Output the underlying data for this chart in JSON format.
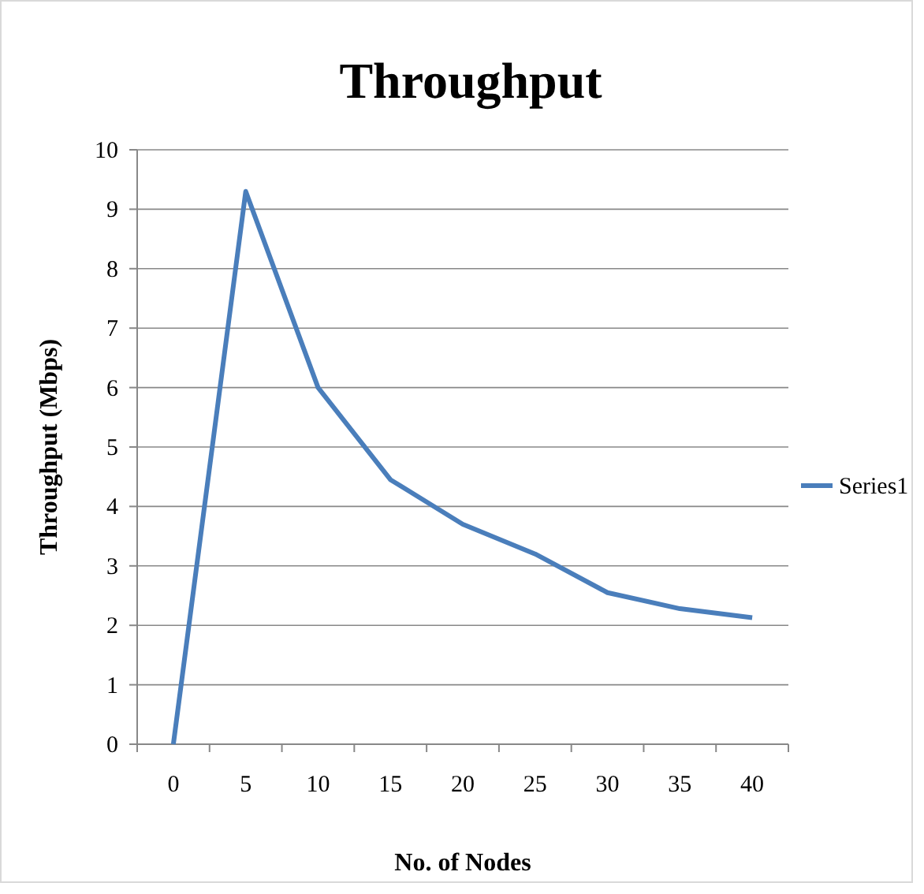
{
  "chart_data": {
    "type": "line",
    "title": "Throughput",
    "xlabel": "No. of Nodes",
    "ylabel": "Throughput (Mbps)",
    "categories": [
      "0",
      "5",
      "10",
      "15",
      "20",
      "25",
      "30",
      "35",
      "40"
    ],
    "series": [
      {
        "name": "Series1",
        "color": "#4a7ebb",
        "values": [
          0,
          9.3,
          6.0,
          4.45,
          3.7,
          3.2,
          2.55,
          2.28,
          2.13
        ]
      }
    ],
    "ylim": [
      0,
      10
    ],
    "yticks": [
      0,
      1,
      2,
      3,
      4,
      5,
      6,
      7,
      8,
      9,
      10
    ],
    "grid": "y",
    "legend": "right",
    "marker": "none",
    "line_style": "solid"
  }
}
